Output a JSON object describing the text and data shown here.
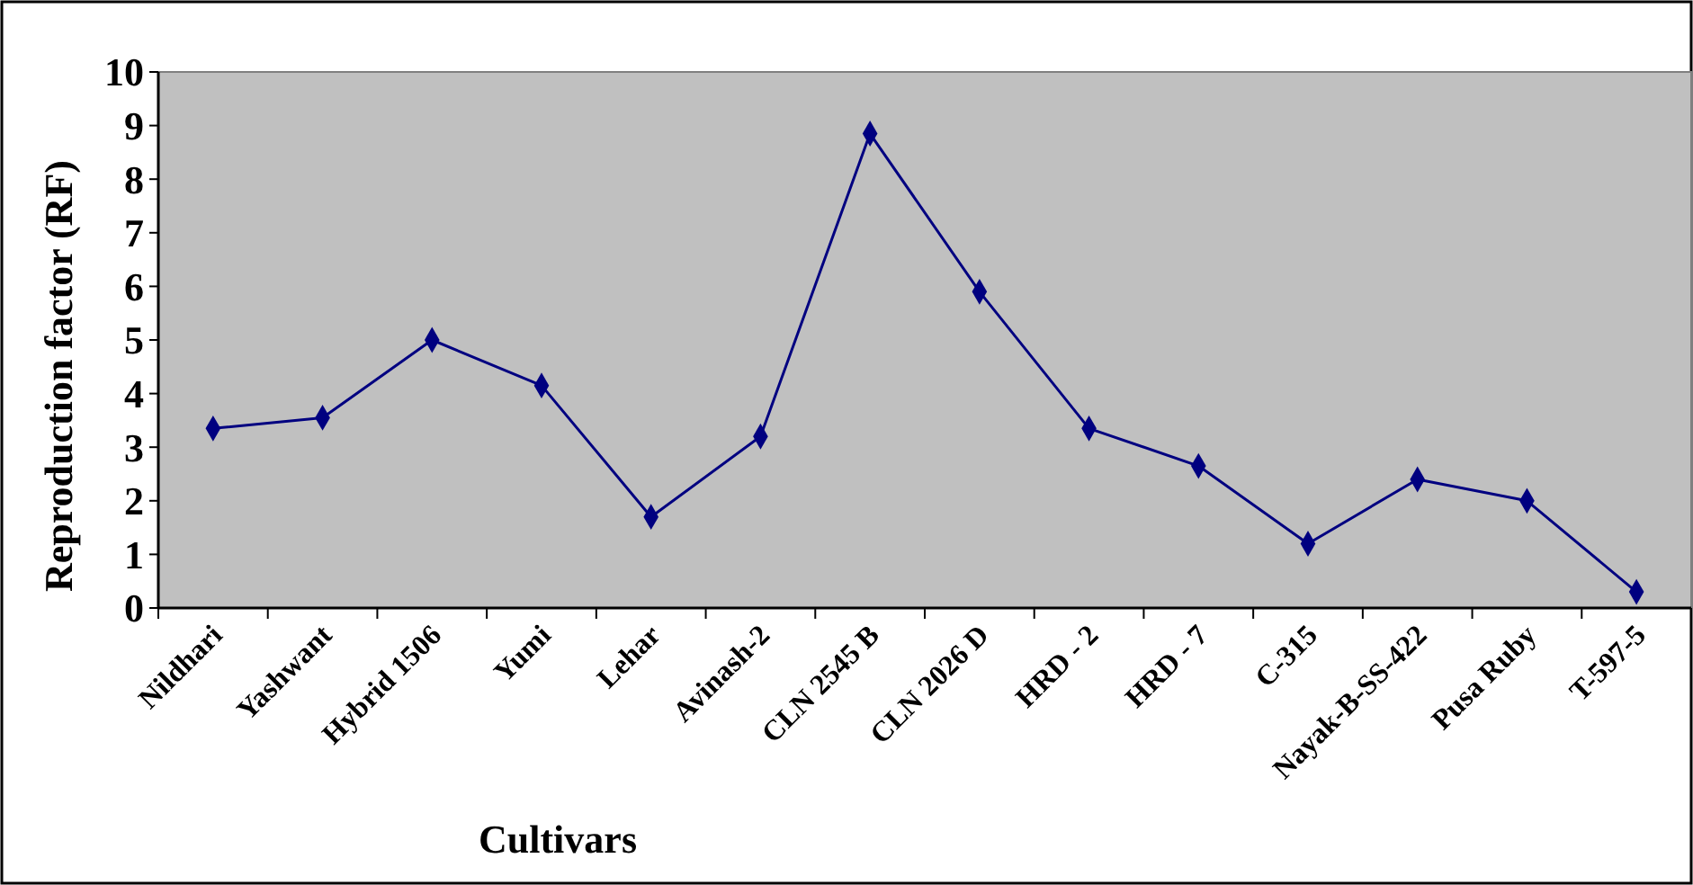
{
  "chart_data": {
    "type": "line",
    "xlabel": "Cultivars",
    "ylabel": "Reproduction factor (RF)",
    "categories": [
      "Nildhari",
      "Yashwant",
      "Hybrid 1506",
      "Yumi",
      "Lehar",
      "Avinash-2",
      "CLN 2545 B",
      "CLN 2026 D",
      "HRD - 2",
      "HRD - 7",
      "C-315",
      "Nayak-B-SS-422",
      "Pusa Ruby",
      "T-597-5"
    ],
    "series": [
      {
        "color": "#000080",
        "values": [
          3.35,
          3.55,
          5.0,
          4.15,
          1.7,
          3.2,
          8.85,
          5.9,
          3.35,
          2.65,
          1.2,
          2.4,
          2.0,
          0.3
        ]
      }
    ],
    "ylim": [
      0,
      10
    ],
    "yticks": [
      0,
      1,
      2,
      3,
      4,
      5,
      6,
      7,
      8,
      9,
      10
    ],
    "grid": false,
    "marker": "diamond",
    "line_style": "solid"
  }
}
